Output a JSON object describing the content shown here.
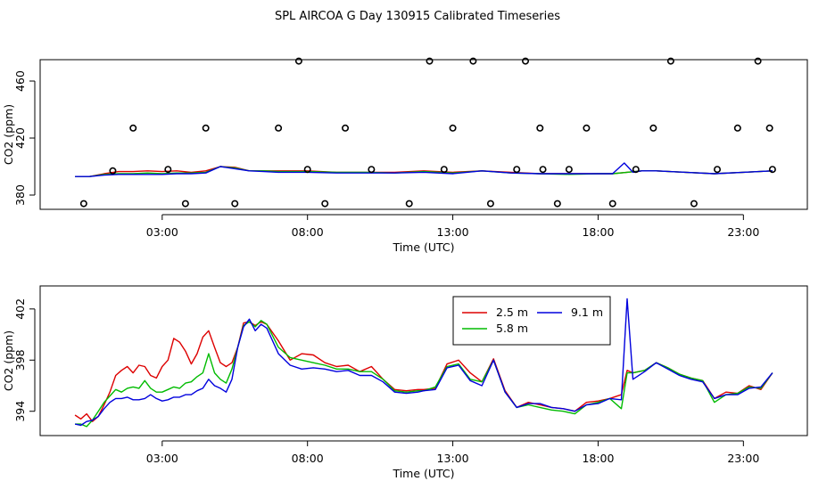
{
  "page_title": "SPL AIRCOA G  Day 130915  Calibrated Timeseries",
  "colors": {
    "s1": "#dd0000",
    "s2": "#00bb00",
    "s3": "#0000dd",
    "axis": "#000000"
  },
  "chart_data": [
    {
      "id": "top",
      "type": "line",
      "title": "SPL AIRCOA G  Day 130915  Calibrated Timeseries",
      "xlabel": "Time (UTC)",
      "ylabel": "CO2 (ppm)",
      "x_units": "hours UTC",
      "xlim": [
        -1.2,
        25.2
      ],
      "ylim": [
        370,
        475
      ],
      "x_ticks": [
        3,
        8,
        13,
        18,
        23
      ],
      "x_tick_labels": [
        "03:00",
        "08:00",
        "13:00",
        "18:00",
        "23:00"
      ],
      "y_ticks": [
        380,
        420,
        460
      ],
      "y_tick_labels": [
        "380",
        "420",
        "460"
      ],
      "series": [
        {
          "name": "2.5 m",
          "color": "#dd0000",
          "x": [
            0.0,
            0.5,
            1.0,
            1.5,
            2.0,
            2.5,
            3.0,
            3.5,
            4.0,
            4.5,
            5.0,
            5.5,
            6.0,
            6.5,
            7.0,
            8.0,
            9.0,
            10.0,
            11.0,
            12.0,
            13.0,
            14.0,
            15.0,
            16.0,
            17.0,
            18.0,
            18.5,
            19.0,
            19.5,
            20.0,
            21.0,
            22.0,
            23.0,
            24.0
          ],
          "y": [
            393,
            393,
            395,
            396.5,
            396.5,
            397,
            396.5,
            397,
            396,
            397,
            400,
            399.5,
            397,
            397,
            397,
            397,
            396,
            396,
            396,
            397,
            396,
            397,
            396,
            395,
            395,
            395,
            395,
            396,
            397,
            397,
            396,
            395,
            396,
            397
          ]
        },
        {
          "name": "5.8 m",
          "color": "#00bb00",
          "x": [
            0.0,
            0.5,
            1.0,
            1.5,
            2.0,
            2.5,
            3.0,
            3.5,
            4.0,
            4.5,
            5.0,
            5.5,
            6.0,
            6.5,
            7.0,
            8.0,
            9.0,
            10.0,
            11.0,
            12.0,
            13.0,
            14.0,
            15.0,
            16.0,
            17.0,
            18.0,
            18.5,
            19.0,
            19.5,
            20.0,
            21.0,
            22.0,
            23.0,
            24.0
          ],
          "y": [
            393,
            393,
            394.5,
            395,
            395,
            395.5,
            395,
            395.5,
            395.5,
            396,
            400,
            399,
            397,
            397,
            396.5,
            396.5,
            396,
            396,
            395.5,
            396.5,
            395.5,
            397,
            395.5,
            395,
            394.5,
            395,
            395,
            396,
            397,
            397,
            396,
            395,
            396,
            397
          ]
        },
        {
          "name": "9.1 m",
          "color": "#0000dd",
          "x": [
            0.0,
            0.5,
            1.0,
            1.5,
            2.0,
            2.5,
            3.0,
            3.5,
            4.0,
            4.5,
            5.0,
            5.5,
            6.0,
            6.5,
            7.0,
            8.0,
            9.0,
            10.0,
            11.0,
            12.0,
            13.0,
            14.0,
            15.0,
            16.0,
            17.0,
            18.0,
            18.5,
            18.9,
            19.2,
            19.5,
            20.0,
            21.0,
            22.0,
            23.0,
            24.0
          ],
          "y": [
            393,
            393,
            394,
            394.5,
            394.5,
            394.5,
            394.5,
            395,
            395,
            395.5,
            400,
            398.5,
            397,
            396.5,
            396,
            396,
            395.5,
            395.5,
            395.5,
            396,
            395,
            397,
            395.5,
            395,
            395,
            395,
            395,
            402.5,
            396,
            397,
            397,
            396,
            395,
            396,
            397
          ]
        }
      ],
      "markers": {
        "name": "open circles",
        "x": [
          0.3,
          1.3,
          2.0,
          3.2,
          3.8,
          4.5,
          5.5,
          7.0,
          7.7,
          8.0,
          8.6,
          9.3,
          10.2,
          11.5,
          12.2,
          12.7,
          13.0,
          13.7,
          14.3,
          15.2,
          15.5,
          16.0,
          16.1,
          16.6,
          17.0,
          17.6,
          18.5,
          19.3,
          19.9,
          20.5,
          21.3,
          22.1,
          22.8,
          23.5,
          23.9,
          24.0
        ],
        "y": [
          374,
          397,
          427,
          398,
          374,
          427,
          374,
          427,
          474,
          398,
          374,
          427,
          398,
          374,
          474,
          398,
          427,
          474,
          374,
          398,
          474,
          427,
          398,
          374,
          398,
          427,
          374,
          398,
          427,
          474,
          374,
          398,
          427,
          474,
          427,
          398
        ]
      }
    },
    {
      "id": "bottom",
      "type": "line",
      "xlabel": "Time (UTC)",
      "ylabel": "CO2 (ppm)",
      "x_units": "hours UTC",
      "xlim": [
        -1.2,
        25.2
      ],
      "ylim": [
        392.1,
        403.8
      ],
      "x_ticks": [
        3,
        8,
        13,
        18,
        23
      ],
      "x_tick_labels": [
        "03:00",
        "08:00",
        "13:00",
        "18:00",
        "23:00"
      ],
      "y_ticks": [
        394,
        398,
        402
      ],
      "y_tick_labels": [
        "394",
        "398",
        "402"
      ],
      "legend": {
        "placement": "top-center",
        "entries": [
          "2.5 m",
          "5.8 m",
          "9.1 m"
        ]
      },
      "series": [
        {
          "name": "2.5 m",
          "color": "#dd0000",
          "x": [
            0.0,
            0.2,
            0.4,
            0.6,
            0.8,
            1.0,
            1.2,
            1.4,
            1.6,
            1.8,
            2.0,
            2.2,
            2.4,
            2.6,
            2.8,
            3.0,
            3.2,
            3.4,
            3.6,
            3.8,
            4.0,
            4.2,
            4.4,
            4.6,
            4.8,
            5.0,
            5.2,
            5.4,
            5.6,
            5.8,
            6.0,
            6.2,
            6.4,
            6.6,
            7.0,
            7.4,
            7.8,
            8.2,
            8.6,
            9.0,
            9.4,
            9.8,
            10.2,
            10.6,
            11.0,
            11.4,
            11.8,
            12.0,
            12.4,
            12.8,
            13.2,
            13.6,
            14.0,
            14.4,
            14.8,
            15.2,
            15.6,
            16.0,
            16.4,
            16.8,
            17.2,
            17.6,
            18.0,
            18.4,
            18.8,
            19.0,
            19.2,
            19.6,
            20.0,
            20.4,
            20.8,
            21.2,
            21.6,
            22.0,
            22.4,
            22.8,
            23.2,
            23.6,
            24.0
          ],
          "y": [
            393.7,
            393.4,
            393.8,
            393.2,
            393.6,
            394.5,
            395.5,
            396.8,
            397.2,
            397.5,
            397,
            397.6,
            397.5,
            396.8,
            396.6,
            397.5,
            398,
            399.7,
            399.4,
            398.7,
            397.7,
            398.5,
            399.8,
            400.3,
            399,
            397.8,
            397.5,
            397.8,
            399,
            400.9,
            401,
            400.7,
            401,
            400.8,
            399.5,
            398,
            398.5,
            398.4,
            397.8,
            397.5,
            397.6,
            397.1,
            397.5,
            396.5,
            395.7,
            395.6,
            395.7,
            395.7,
            395.8,
            397.7,
            398,
            397,
            396.3,
            398.1,
            395.6,
            394.3,
            394.7,
            394.5,
            394.3,
            394.2,
            394,
            394.7,
            394.8,
            395,
            395.3,
            397.2,
            397,
            397.2,
            397.8,
            397.4,
            396.9,
            396.6,
            396.4,
            395,
            395.5,
            395.4,
            396,
            395.7,
            397
          ]
        },
        {
          "name": "5.8 m",
          "color": "#00bb00",
          "x": [
            0.0,
            0.2,
            0.4,
            0.6,
            0.8,
            1.0,
            1.2,
            1.4,
            1.6,
            1.8,
            2.0,
            2.2,
            2.4,
            2.6,
            2.8,
            3.0,
            3.2,
            3.4,
            3.6,
            3.8,
            4.0,
            4.2,
            4.4,
            4.6,
            4.8,
            5.0,
            5.2,
            5.4,
            5.6,
            5.8,
            6.0,
            6.2,
            6.4,
            6.6,
            7.0,
            7.4,
            7.8,
            8.2,
            8.6,
            9.0,
            9.4,
            9.8,
            10.2,
            10.6,
            11.0,
            11.4,
            11.8,
            12.0,
            12.4,
            12.8,
            13.2,
            13.6,
            14.0,
            14.4,
            14.8,
            15.2,
            15.6,
            16.0,
            16.4,
            16.8,
            17.2,
            17.6,
            18.0,
            18.4,
            18.8,
            19.0,
            19.2,
            19.6,
            20.0,
            20.4,
            20.8,
            21.2,
            21.6,
            22.0,
            22.4,
            22.8,
            23.2,
            23.6,
            24.0
          ],
          "y": [
            393,
            393,
            392.8,
            393.3,
            394,
            394.7,
            395.2,
            395.7,
            395.5,
            395.8,
            395.9,
            395.8,
            396.4,
            395.8,
            395.5,
            395.5,
            395.7,
            395.9,
            395.8,
            396.2,
            396.3,
            396.7,
            397,
            398.5,
            397,
            396.5,
            396.2,
            397.3,
            399,
            400.7,
            401,
            400.6,
            401.1,
            400.8,
            399,
            398.2,
            398,
            397.8,
            397.6,
            397.3,
            397.3,
            397.1,
            397.1,
            396.5,
            395.6,
            395.5,
            395.6,
            395.6,
            395.9,
            397.5,
            397.7,
            396.5,
            396.3,
            398,
            395.5,
            394.3,
            394.5,
            394.3,
            394.1,
            394,
            393.8,
            394.5,
            394.7,
            395,
            394.2,
            397,
            397,
            397.2,
            397.8,
            397.4,
            396.9,
            396.6,
            396.4,
            394.7,
            395.3,
            395.4,
            395.9,
            395.8,
            397
          ]
        },
        {
          "name": "9.1 m",
          "color": "#0000dd",
          "x": [
            0.0,
            0.2,
            0.4,
            0.6,
            0.8,
            1.0,
            1.2,
            1.4,
            1.6,
            1.8,
            2.0,
            2.2,
            2.4,
            2.6,
            2.8,
            3.0,
            3.2,
            3.4,
            3.6,
            3.8,
            4.0,
            4.2,
            4.4,
            4.6,
            4.8,
            5.0,
            5.2,
            5.4,
            5.6,
            5.8,
            6.0,
            6.2,
            6.4,
            6.6,
            7.0,
            7.4,
            7.8,
            8.2,
            8.6,
            9.0,
            9.4,
            9.8,
            10.2,
            10.6,
            11.0,
            11.4,
            11.8,
            12.0,
            12.4,
            12.8,
            13.2,
            13.6,
            14.0,
            14.4,
            14.8,
            15.2,
            15.6,
            16.0,
            16.4,
            16.8,
            17.2,
            17.6,
            18.0,
            18.4,
            18.8,
            19.0,
            19.2,
            19.6,
            20.0,
            20.4,
            20.8,
            21.2,
            21.6,
            22.0,
            22.4,
            22.8,
            23.2,
            23.6,
            24.0
          ],
          "y": [
            393,
            392.9,
            393.2,
            393.3,
            393.6,
            394.2,
            394.7,
            395,
            395,
            395.1,
            394.9,
            394.9,
            395,
            395.3,
            395,
            394.8,
            394.9,
            395.1,
            395.1,
            395.3,
            395.3,
            395.6,
            395.8,
            396.5,
            396,
            395.8,
            395.5,
            396.5,
            399,
            400.6,
            401.2,
            400.3,
            400.8,
            400.5,
            398.5,
            397.6,
            397.3,
            397.4,
            397.3,
            397.1,
            397.2,
            396.8,
            396.8,
            396.3,
            395.5,
            395.4,
            395.5,
            395.6,
            395.7,
            397.4,
            397.6,
            396.4,
            396,
            398,
            395.5,
            394.3,
            394.6,
            394.6,
            394.3,
            394.2,
            394,
            394.5,
            394.6,
            395,
            394.9,
            402.8,
            396.5,
            397.1,
            397.8,
            397.3,
            396.8,
            396.5,
            396.3,
            395,
            395.3,
            395.3,
            395.8,
            395.9,
            397
          ]
        }
      ]
    }
  ]
}
